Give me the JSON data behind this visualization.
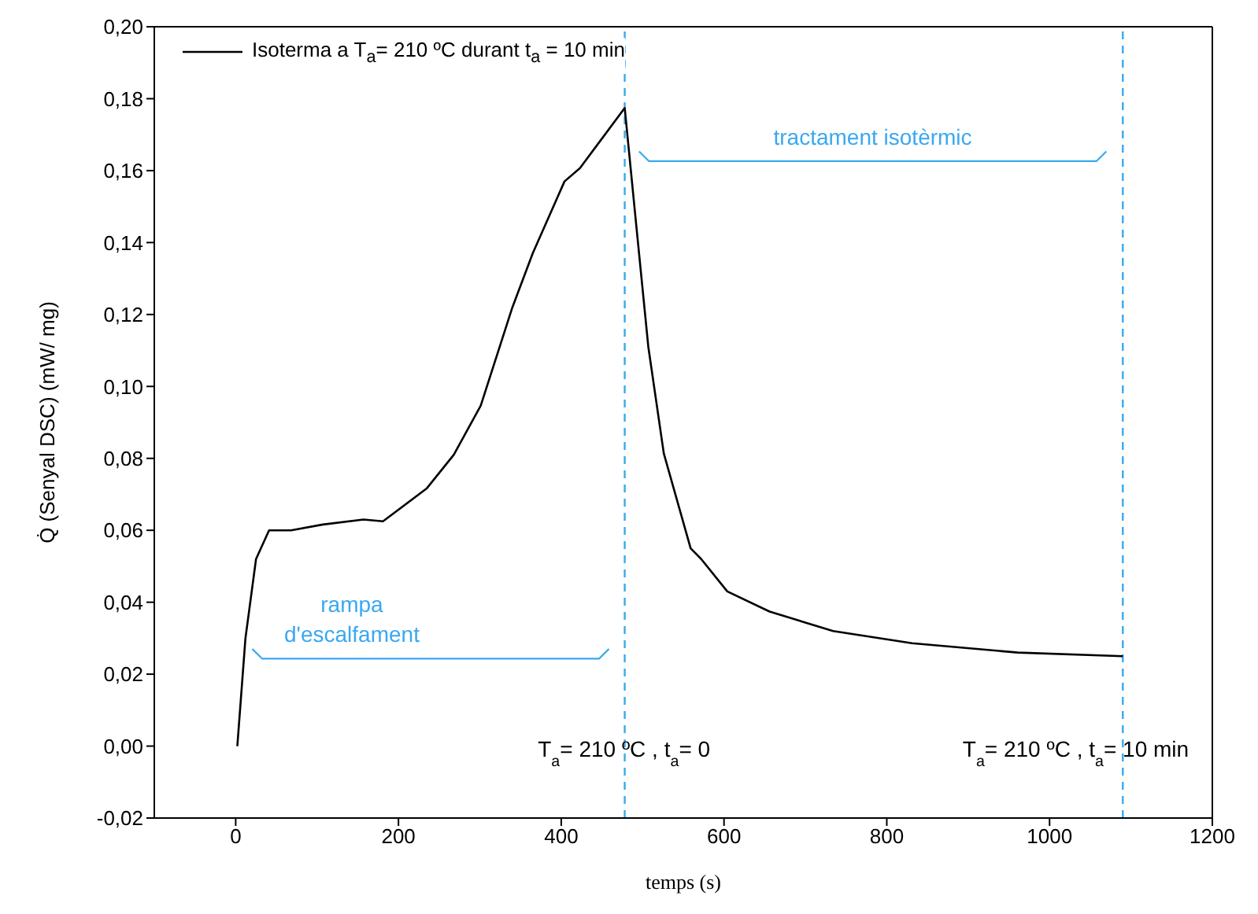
{
  "chart_data": {
    "type": "line",
    "xlabel": "temps (s)",
    "ylabel": "Q̇ (Senyal DSC) (mW/ mg)",
    "x": [
      2,
      12,
      25,
      41,
      68,
      107,
      157,
      181,
      235,
      268,
      301,
      340,
      365,
      404,
      423,
      478,
      491,
      507,
      526,
      559,
      572,
      604,
      656,
      734,
      831,
      961,
      1090
    ],
    "series": [
      {
        "name": "Isoterma a T$_{a}$= 210 ºC durant t$_{a}$ = 10 min",
        "color": "#000000",
        "values": [
          0.0,
          0.03,
          0.052,
          0.06,
          0.06,
          0.0616,
          0.063,
          0.0625,
          0.0717,
          0.081,
          0.0946,
          0.122,
          0.137,
          0.157,
          0.1607,
          0.1774,
          0.1475,
          0.111,
          0.0814,
          0.055,
          0.052,
          0.043,
          0.0374,
          0.032,
          0.0286,
          0.026,
          0.025
        ]
      }
    ],
    "xlim": [
      -100,
      1200
    ],
    "xticks": [
      0,
      200,
      400,
      600,
      800,
      1000,
      1200
    ],
    "ylim": [
      -0.02,
      0.2
    ],
    "yticks": [
      {
        "value": -0.02,
        "label": "-0,02"
      },
      {
        "value": 0,
        "label": "0,00"
      },
      {
        "value": 0.02,
        "label": "0,02"
      },
      {
        "value": 0.04,
        "label": "0,04"
      },
      {
        "value": 0.06,
        "label": "0,06"
      },
      {
        "value": 0.08,
        "label": "0,08"
      },
      {
        "value": 0.1,
        "label": "0,10"
      },
      {
        "value": 0.12,
        "label": "0,12"
      },
      {
        "value": 0.14,
        "label": "0,14"
      },
      {
        "value": 0.16,
        "label": "0,16"
      },
      {
        "value": 0.18,
        "label": "0,18"
      },
      {
        "value": 0.2,
        "label": "0,20"
      }
    ],
    "ref_lines": [
      {
        "axis": "x",
        "value": 478,
        "color": "#3aa8f0",
        "line_style": "dashed"
      },
      {
        "axis": "x",
        "value": 1090,
        "color": "#3aa8f0",
        "line_style": "dashed"
      }
    ],
    "annotations": [
      "rampa\nd'escalfament",
      "tractament isotèrmic",
      {
        "text": "T$_{a}$= 210 ºC , t$_{a}$= 0",
        "x": 478,
        "y": -0.003
      },
      {
        "text": "T$_{a}$= 210 ºC , t$_{a}$= 10 min",
        "x": 1090,
        "y": -0.003
      }
    ],
    "grid": false,
    "legend": "top left",
    "marker": "none",
    "line_style": "solid"
  }
}
